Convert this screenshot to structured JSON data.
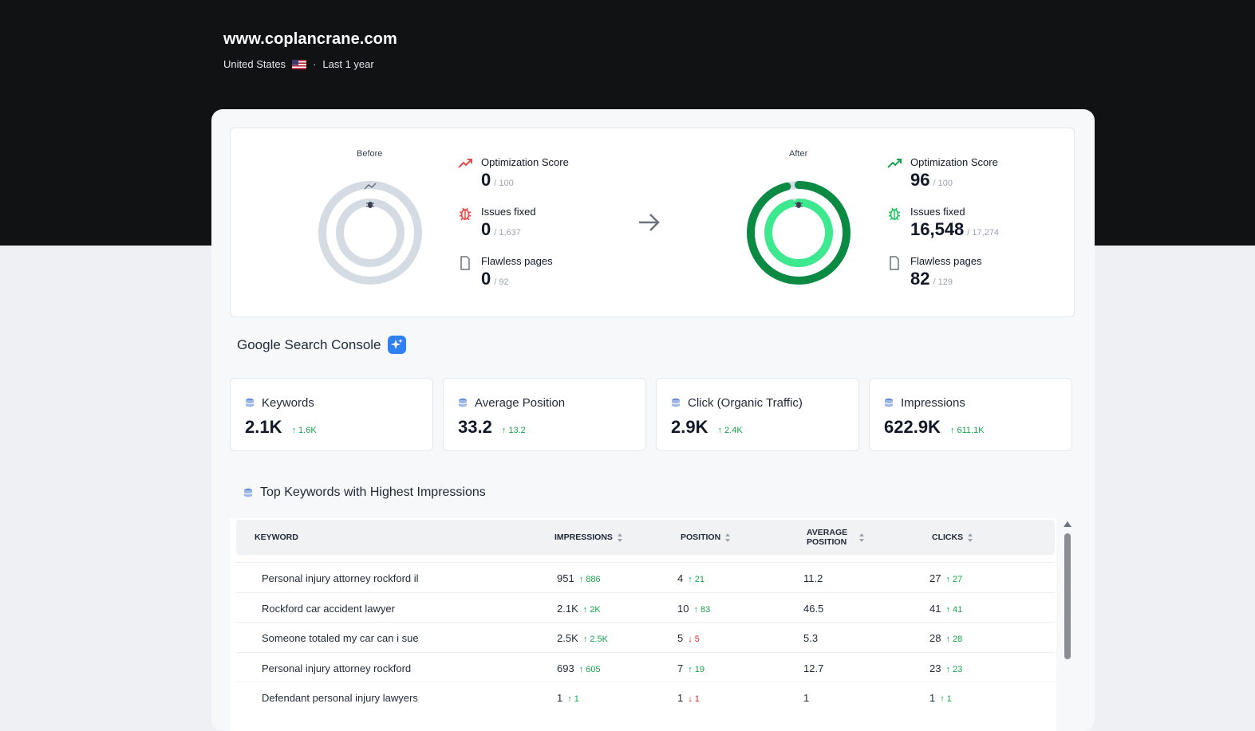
{
  "header": {
    "site": "www.coplancrane.com",
    "country": "United States",
    "separator": "·",
    "period": "Last 1 year"
  },
  "before": {
    "label": "Before",
    "score_label": "Optimization Score",
    "score": "0",
    "score_total": "/ 100",
    "issues_label": "Issues fixed",
    "issues": "0",
    "issues_total": "/ 1,637",
    "pages_label": "Flawless pages",
    "pages": "0",
    "pages_total": "/ 92",
    "ring_fraction": 0
  },
  "after": {
    "label": "After",
    "score_label": "Optimization Score",
    "score": "96",
    "score_total": "/ 100",
    "issues_label": "Issues fixed",
    "issues": "16,548",
    "issues_total": "/ 17,274",
    "pages_label": "Flawless pages",
    "pages": "82",
    "pages_total": "/ 129",
    "ring_fraction": 0.96
  },
  "gsc": {
    "title": "Google Search Console",
    "cards": [
      {
        "label": "Keywords",
        "value": "2.1K",
        "delta": "1.6K"
      },
      {
        "label": "Average Position",
        "value": "33.2",
        "delta": "13.2"
      },
      {
        "label": "Click (Organic Traffic)",
        "value": "2.9K",
        "delta": "2.4K"
      },
      {
        "label": "Impressions",
        "value": "622.9K",
        "delta": "611.1K"
      }
    ]
  },
  "top_keywords": {
    "title": "Top Keywords with Highest Impressions",
    "columns": [
      "Keyword",
      "Impressions",
      "Position",
      "Average Position",
      "Clicks"
    ],
    "rows": [
      {
        "keyword": "Personal injury attorney rockford il",
        "impressions": "951",
        "imp_delta": "886",
        "imp_dir": "up",
        "position": "4",
        "pos_delta": "21",
        "pos_dir": "up",
        "avg": "11.2",
        "clicks": "27",
        "clk_delta": "27",
        "clk_dir": "up"
      },
      {
        "keyword": "Rockford car accident lawyer",
        "impressions": "2.1K",
        "imp_delta": "2K",
        "imp_dir": "up",
        "position": "10",
        "pos_delta": "83",
        "pos_dir": "up",
        "avg": "46.5",
        "clicks": "41",
        "clk_delta": "41",
        "clk_dir": "up"
      },
      {
        "keyword": "Someone totaled my car can i sue",
        "impressions": "2.5K",
        "imp_delta": "2.5K",
        "imp_dir": "up",
        "position": "5",
        "pos_delta": "5",
        "pos_dir": "down",
        "avg": "5.3",
        "clicks": "28",
        "clk_delta": "28",
        "clk_dir": "up"
      },
      {
        "keyword": "Personal injury attorney rockford",
        "impressions": "693",
        "imp_delta": "605",
        "imp_dir": "up",
        "position": "7",
        "pos_delta": "19",
        "pos_dir": "up",
        "avg": "12.7",
        "clicks": "23",
        "clk_delta": "23",
        "clk_dir": "up"
      },
      {
        "keyword": "Defendant personal injury lawyers",
        "impressions": "1",
        "imp_delta": "1",
        "imp_dir": "up",
        "position": "1",
        "pos_delta": "1",
        "pos_dir": "down",
        "avg": "1",
        "clicks": "1",
        "clk_delta": "1",
        "clk_dir": "up"
      }
    ]
  },
  "colors": {
    "header_bg": "#111214",
    "accent_green": "#16a34a",
    "ring_green_outer": "#0a8a43",
    "ring_green_inner": "#3ee88f",
    "ring_gray": "#d5dbe2",
    "negative_red": "#dc2626",
    "ai_badge": "#2f7ff5"
  },
  "icons": {
    "trend": "trending-up-icon",
    "issues": "bug-icon",
    "pages": "document-icon",
    "arrow": "arrow-right-icon",
    "gsc": "sparkle-icon",
    "metric": "database-icon"
  }
}
